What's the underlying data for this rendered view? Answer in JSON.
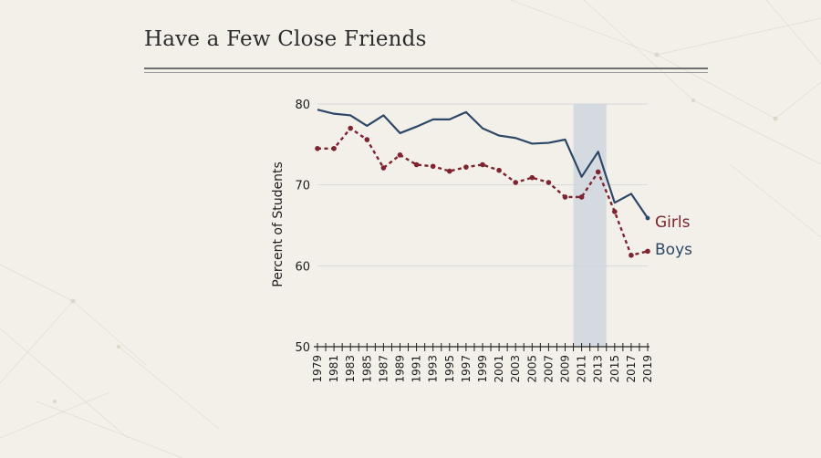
{
  "title": "Have a Few Close Friends",
  "colors": {
    "background": "#f3f0ea",
    "boys": "#2d4766",
    "girls": "#7d2430",
    "highlight": "#cfd6df",
    "grid": "#d9d9d9"
  },
  "chart_data": {
    "type": "line",
    "title": "Have a Few Close Friends",
    "xlabel": "",
    "ylabel": "Percent of Students",
    "ylim": [
      50,
      80
    ],
    "yticks": [
      50,
      60,
      70,
      80
    ],
    "grid": true,
    "x": [
      1979,
      1981,
      1983,
      1985,
      1987,
      1989,
      1991,
      1993,
      1995,
      1997,
      1999,
      2001,
      2003,
      2005,
      2007,
      2009,
      2011,
      2013,
      2015,
      2017,
      2019
    ],
    "highlight_range": [
      2010,
      2014
    ],
    "series": [
      {
        "name": "Boys",
        "style": "solid",
        "values": [
          79.3,
          78.8,
          78.6,
          77.3,
          78.6,
          76.4,
          77.2,
          78.1,
          78.1,
          79.0,
          77.0,
          76.1,
          75.8,
          75.1,
          75.2,
          75.6,
          71.0,
          74.1,
          67.8,
          68.9,
          65.9
        ]
      },
      {
        "name": "Girls",
        "style": "dotted",
        "values": [
          74.5,
          74.5,
          77.0,
          75.6,
          72.1,
          73.7,
          72.5,
          72.3,
          71.7,
          72.2,
          72.5,
          71.8,
          70.3,
          70.9,
          70.3,
          68.5,
          68.5,
          71.6,
          66.7,
          61.3,
          61.8
        ]
      }
    ]
  }
}
